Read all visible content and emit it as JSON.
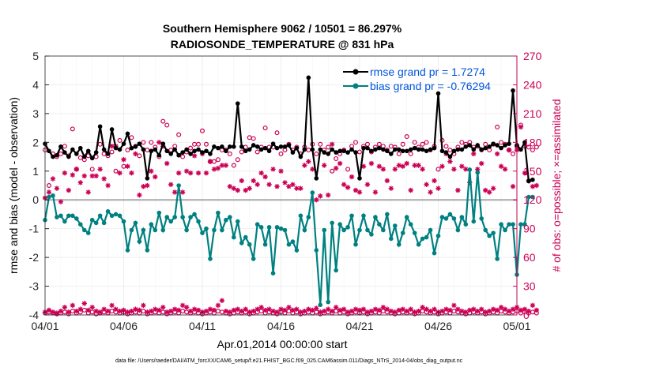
{
  "colors": {
    "rmse": "#000000",
    "bias": "#008080",
    "obs": "#cc0055",
    "zero_line": "#aaaaaa",
    "legend_text": "#0055dd"
  },
  "chart_data": {
    "type": "line",
    "title_line1": "Southern Hemisphere 9062 / 10501 = 86.297%",
    "title_line2": "RADIOSONDE_TEMPERATURE @ 831 hPa",
    "xlabel": "Apr.01,2014 00:00:00 start",
    "ylabel": "rmse and bias (model - observation)",
    "y2label": "# of obs: o=possible; ×=assimilated",
    "footnote": "data file: /Users/raeder/DAI/ATM_forcXX/CAM6_setup/f.e21.FHIST_BGC.f09_025.CAM6assim.011/Diags_NTrS_2014-04/obs_diag_output.nc",
    "xlim": [
      0,
      30
    ],
    "ylim": [
      -4,
      5
    ],
    "y2lim": [
      0,
      270
    ],
    "grid": true,
    "legend_position": "top-right",
    "x_ticks": [
      0,
      5,
      10,
      15,
      20,
      25,
      30
    ],
    "x_tick_labels": [
      "04/01",
      "04/06",
      "04/11",
      "04/16",
      "04/21",
      "04/26",
      "05/01"
    ],
    "y_ticks": [
      -4,
      -3,
      -2,
      -1,
      0,
      1,
      2,
      3,
      4,
      5
    ],
    "y_tick_labels": [
      "-4",
      "-3",
      "-2",
      "-1",
      "0",
      "1",
      "2",
      "3",
      "4",
      "5"
    ],
    "y2_ticks": [
      0,
      30,
      60,
      90,
      120,
      150,
      180,
      210,
      240,
      270
    ],
    "y2_tick_labels": [
      "0",
      "30",
      "60",
      "90",
      "120",
      "150",
      "180",
      "210",
      "240",
      "270"
    ],
    "step": 0.25,
    "series": [
      {
        "name": "rmse grand pr = 1.7274",
        "values": [
          1.95,
          1.7,
          1.5,
          1.55,
          1.85,
          1.65,
          1.5,
          1.75,
          1.6,
          1.8,
          1.5,
          1.7,
          1.45,
          1.65,
          2.55,
          1.75,
          1.6,
          2.45,
          1.8,
          1.75,
          1.95,
          2.3,
          1.8,
          1.85,
          1.95,
          1.75,
          0.75,
          1.7,
          1.75,
          1.55,
          1.95,
          1.7,
          1.6,
          1.75,
          1.55,
          1.65,
          1.75,
          1.6,
          1.7,
          1.75,
          1.65,
          1.7,
          1.6,
          1.85,
          1.8,
          1.85,
          1.7,
          1.85,
          1.85,
          3.35,
          1.85,
          1.7,
          1.75,
          1.9,
          1.85,
          1.75,
          1.8,
          1.7,
          1.95,
          1.8,
          1.85,
          1.85,
          1.9,
          1.65,
          1.8,
          1.5,
          1.75,
          4.25,
          1.75,
          0.75,
          1.75,
          1.65,
          1.6,
          1.75,
          1.65,
          1.7,
          1.7,
          1.65,
          1.75,
          1.65,
          0.75,
          1.8,
          1.8,
          1.7,
          1.75,
          1.8,
          1.75,
          1.7,
          1.6,
          1.75,
          1.75,
          1.7,
          1.7,
          1.75,
          1.8,
          1.75,
          1.75,
          1.7,
          1.75,
          1.8,
          3.7,
          1.7,
          1.65,
          1.5,
          1.7,
          1.75,
          1.75,
          1.85,
          1.9,
          1.75,
          1.9,
          1.75,
          1.8,
          1.85,
          1.95,
          1.9,
          1.8,
          1.9,
          1.95,
          3.8,
          1.9,
          1.75,
          2.0,
          0.65,
          0.7
        ],
        "color": "#000000"
      },
      {
        "name": "bias grand pr = -0.76294",
        "values": [
          -0.7,
          0.1,
          0.15,
          -0.6,
          -0.55,
          -0.75,
          -0.55,
          -0.55,
          -0.65,
          -0.85,
          -1.05,
          -1.15,
          -0.7,
          -0.8,
          -0.55,
          -0.8,
          -0.4,
          -0.55,
          -0.5,
          -0.55,
          -0.75,
          -1.75,
          -1.05,
          -0.8,
          -1.45,
          -1.05,
          -1.75,
          -0.85,
          -1.05,
          -0.45,
          -1.05,
          -0.6,
          -0.75,
          -0.6,
          0.5,
          -0.6,
          -1.05,
          -0.6,
          -0.5,
          -0.75,
          -1.15,
          -1.0,
          -2.05,
          -1.05,
          -0.45,
          -1.05,
          -0.7,
          -0.6,
          -1.3,
          -0.75,
          -1.5,
          -1.3,
          -1.55,
          -2.05,
          -0.85,
          -0.95,
          -1.55,
          -0.95,
          -2.55,
          -0.95,
          -1.0,
          -1.05,
          -1.55,
          -1.45,
          -1.75,
          -0.55,
          -1.05,
          -0.6,
          0.25,
          -1.75,
          -3.65,
          -1.05,
          -3.55,
          -0.8,
          -2.45,
          -0.85,
          -1.05,
          -0.95,
          -0.55,
          -1.55,
          -1.05,
          -0.55,
          -1.05,
          -1.2,
          -0.6,
          -0.85,
          -1.05,
          -0.5,
          -1.35,
          -0.9,
          -1.55,
          -1.15,
          -0.6,
          -0.85,
          -1.15,
          -1.55,
          -1.35,
          -1.3,
          -1.05,
          -1.85,
          -1.25,
          -0.6,
          -0.65,
          -0.5,
          -0.65,
          -1.05,
          -0.6,
          -0.85,
          1.05,
          -0.75,
          0.95,
          -0.65,
          -1.05,
          -1.25,
          -1.15,
          -2.05,
          -0.85,
          -1.05,
          -0.85,
          -0.85,
          -2.6,
          -0.85,
          -0.85,
          0.1,
          0.1
        ],
        "color": "#008080"
      },
      {
        "name": "possible",
        "values": [
          172,
          135,
          168,
          165,
          168,
          176,
          166,
          194,
          152,
          164,
          162,
          166,
          152,
          165,
          178,
          168,
          166,
          170,
          150,
          182,
          155,
          172,
          185,
          176,
          166,
          180,
          172,
          180,
          175,
          165,
          202,
          198,
          172,
          176,
          188,
          165,
          170,
          174,
          178,
          178,
          192,
          178,
          160,
          160,
          162,
          172,
          172,
          168,
          156,
          162,
          170,
          175,
          185,
          184,
          170,
          175,
          195,
          175,
          175,
          190,
          168,
          172,
          178,
          172,
          175,
          168,
          175,
          172,
          178,
          168,
          178,
          172,
          175,
          150,
          163,
          168,
          172,
          152,
          176,
          180,
          170,
          176,
          178,
          170,
          175,
          178,
          176,
          172,
          176,
          175,
          168,
          178,
          186,
          168,
          180,
          175,
          178,
          180,
          172,
          176,
          152,
          182,
          176,
          172,
          168,
          175,
          180,
          178,
          180,
          175,
          176,
          172,
          178,
          172,
          178,
          196,
          180,
          178,
          172,
          168,
          176,
          198,
          176,
          175,
          172,
          175
        ],
        "color": "#cc0055"
      },
      {
        "name": "assimilated",
        "values": [
          122,
          128,
          142,
          132,
          118,
          148,
          130,
          146,
          152,
          138,
          145,
          128,
          145,
          145,
          152,
          142,
          135,
          176,
          176,
          148,
          162,
          155,
          148,
          168,
          125,
          134,
          135,
          150,
          144,
          180,
          176,
          158,
          136,
          128,
          148,
          128,
          150,
          148,
          166,
          148,
          168,
          148,
          160,
          152,
          153,
          156,
          156,
          134,
          132,
          130,
          140,
          130,
          132,
          140,
          136,
          148,
          144,
          136,
          152,
          134,
          150,
          138,
          134,
          136,
          132,
          132,
          156,
          160,
          152,
          120,
          124,
          156,
          125,
          178,
          153,
          158,
          136,
          133,
          144,
          130,
          128,
          155,
          136,
          158,
          128,
          155,
          152,
          140,
          132,
          152,
          156,
          155,
          158,
          130,
          156,
          156,
          152,
          136,
          128,
          140,
          132,
          155,
          168,
          160,
          152,
          130,
          155,
          152,
          138,
          168,
          152,
          158,
          130,
          128,
          132,
          168,
          155,
          152,
          172,
          134,
          172,
          196,
          148,
          140,
          134,
          135
        ],
        "color": "#cc0055"
      },
      {
        "name": "possible-low",
        "values": [
          2,
          3,
          2,
          1,
          2,
          3,
          1,
          4,
          2,
          3,
          5,
          2,
          3,
          1,
          2,
          3,
          2,
          4,
          3,
          2,
          3,
          1,
          2,
          3,
          2,
          4,
          1,
          2,
          3,
          2,
          3,
          1,
          2,
          3,
          2,
          4,
          3,
          2,
          3,
          2,
          1,
          2,
          3,
          2,
          4,
          3,
          2,
          1,
          2,
          3,
          2,
          3,
          1,
          2,
          3,
          4,
          2,
          3,
          2,
          1,
          3,
          2,
          4,
          2,
          3,
          1,
          2,
          3,
          2,
          3,
          1,
          2,
          3,
          2,
          4,
          2,
          3,
          1,
          2,
          3,
          2,
          3,
          1,
          2,
          3,
          2,
          4,
          3,
          2,
          1,
          2,
          3,
          2,
          3,
          1,
          2,
          4,
          3,
          2,
          3,
          1,
          2,
          3,
          2,
          4,
          3,
          2,
          1,
          2,
          3,
          2,
          3,
          1,
          2,
          3,
          2,
          4,
          3,
          2,
          3,
          4,
          2,
          3,
          2,
          3,
          2
        ],
        "color": "#cc0055"
      },
      {
        "name": "assimilated-low",
        "values": [
          3,
          5,
          3,
          2,
          4,
          8,
          3,
          10,
          4,
          6,
          12,
          5,
          8,
          4,
          3,
          6,
          4,
          10,
          6,
          4,
          5,
          3,
          4,
          6,
          5,
          10,
          3,
          4,
          6,
          5,
          8,
          3,
          4,
          6,
          5,
          10,
          8,
          4,
          6,
          5,
          3,
          4,
          6,
          5,
          10,
          15,
          4,
          3,
          5,
          6,
          4,
          6,
          3,
          4,
          6,
          8,
          5,
          6,
          4,
          3,
          6,
          5,
          8,
          5,
          6,
          3,
          4,
          6,
          5,
          7,
          3,
          4,
          6,
          4,
          8,
          5,
          6,
          3,
          4,
          6,
          5,
          6,
          3,
          4,
          6,
          5,
          8,
          6,
          4,
          3,
          5,
          6,
          4,
          6,
          3,
          4,
          8,
          6,
          4,
          6,
          3,
          4,
          6,
          5,
          10,
          6,
          4,
          3,
          5,
          6,
          4,
          6,
          3,
          4,
          6,
          5,
          8,
          6,
          4,
          6,
          8,
          5,
          6,
          4,
          10,
          5
        ],
        "color": "#cc0055"
      }
    ]
  }
}
